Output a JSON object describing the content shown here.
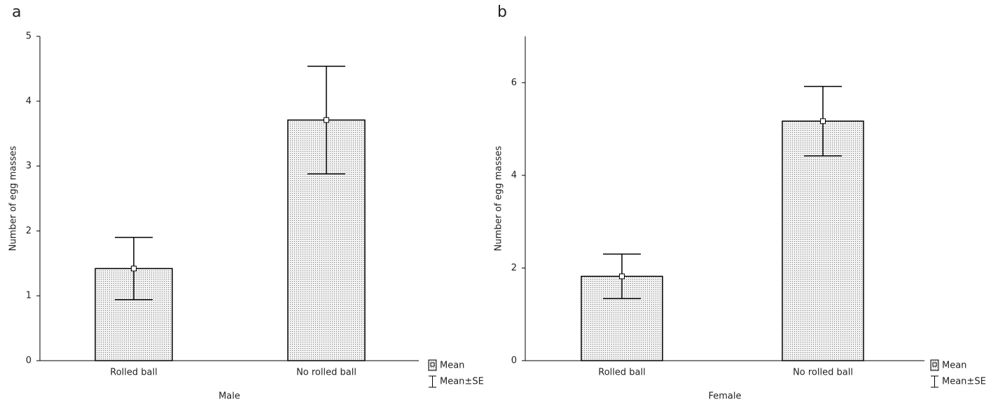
{
  "chart_data": [
    {
      "type": "bar",
      "panel_label": "a",
      "y_label": "Number of egg masses",
      "x_label": "Male",
      "categories": [
        "Rolled ball",
        "No rolled ball"
      ],
      "values": [
        1.42,
        3.71
      ],
      "errors": [
        0.48,
        0.83
      ],
      "ylim": [
        0,
        5
      ],
      "yticks": [
        0,
        1,
        2,
        3,
        4,
        5
      ],
      "legend": [
        "Mean",
        "Mean±SE"
      ]
    },
    {
      "type": "bar",
      "panel_label": "b",
      "y_label": "Number of egg masses",
      "x_label": "Female",
      "categories": [
        "Rolled ball",
        "No rolled ball"
      ],
      "values": [
        1.82,
        5.17
      ],
      "errors": [
        0.48,
        0.75
      ],
      "ylim": [
        0,
        7
      ],
      "yticks": [
        0,
        2,
        4,
        6
      ],
      "legend": [
        "Mean",
        "Mean±SE"
      ]
    }
  ]
}
